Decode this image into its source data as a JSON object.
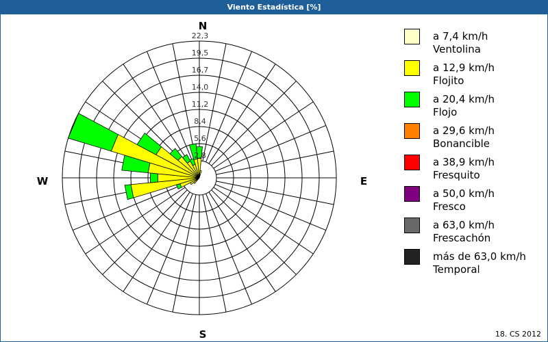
{
  "title": "Viento Estadística [%]",
  "footer": "18. CS 2012",
  "chart_data": {
    "type": "wind-rose",
    "title": "Viento Estadística [%]",
    "unit": "%",
    "rmax": 22.3,
    "ring_labels": [
      "2,8",
      "5,6",
      "8,4",
      "11,2",
      "14,0",
      "16,7",
      "19,5",
      "22,3"
    ],
    "ring_values": [
      2.8,
      5.6,
      8.4,
      11.2,
      14.0,
      16.7,
      19.5,
      22.3
    ],
    "compass_labels": {
      "n": "N",
      "e": "E",
      "s": "S",
      "w": "W"
    },
    "sectors": 32,
    "grid": true,
    "legend_position": "right",
    "classes": [
      {
        "range": "a 7,4 km/h",
        "name": "Ventolina",
        "color": "#ffffc8"
      },
      {
        "range": "a 12,9 km/h",
        "name": "Flojito",
        "color": "#ffff00"
      },
      {
        "range": "a 20,4 km/h",
        "name": "Flojo",
        "color": "#00ff00"
      },
      {
        "range": "a 29,6 km/h",
        "name": "Bonancible",
        "color": "#ff8000"
      },
      {
        "range": "a 38,9 km/h",
        "name": "Fresquito",
        "color": "#ff0000"
      },
      {
        "range": "a 50,0 km/h",
        "name": "Fresco",
        "color": "#800080"
      },
      {
        "range": "a 63,0 km/h",
        "name": "Frescachón",
        "color": "#696969"
      },
      {
        "range": "más de 63,0 km/h",
        "name": "Temporal",
        "color": "#222222"
      }
    ],
    "series": [
      {
        "direction_deg": 0,
        "values": [
          0.3,
          2.9,
          1.9
        ]
      },
      {
        "direction_deg": 11.25,
        "values": [
          0.2,
          1.0,
          0
        ]
      },
      {
        "direction_deg": 225,
        "values": [
          0.2,
          1.0,
          0
        ]
      },
      {
        "direction_deg": 236.25,
        "values": [
          0.2,
          1.5,
          0
        ]
      },
      {
        "direction_deg": 247.5,
        "values": [
          0.3,
          3.0,
          0.6
        ]
      },
      {
        "direction_deg": 258.75,
        "values": [
          0.3,
          10.9,
          1.0
        ]
      },
      {
        "direction_deg": 270,
        "values": [
          0.3,
          6.5,
          1.2
        ]
      },
      {
        "direction_deg": 281.25,
        "values": [
          0.3,
          8.1,
          4.3
        ]
      },
      {
        "direction_deg": 292.5,
        "values": [
          0.4,
          14.6,
          7.3
        ]
      },
      {
        "direction_deg": 303.75,
        "values": [
          0.3,
          7.7,
          3.5
        ]
      },
      {
        "direction_deg": 315,
        "values": [
          0.3,
          4.2,
          1.7
        ]
      },
      {
        "direction_deg": 326.25,
        "values": [
          0.3,
          2.8,
          1.2
        ]
      },
      {
        "direction_deg": 337.5,
        "values": [
          0.3,
          2.0,
          1.0
        ]
      },
      {
        "direction_deg": 348.75,
        "values": [
          0.3,
          2.8,
          2.5
        ]
      }
    ]
  }
}
